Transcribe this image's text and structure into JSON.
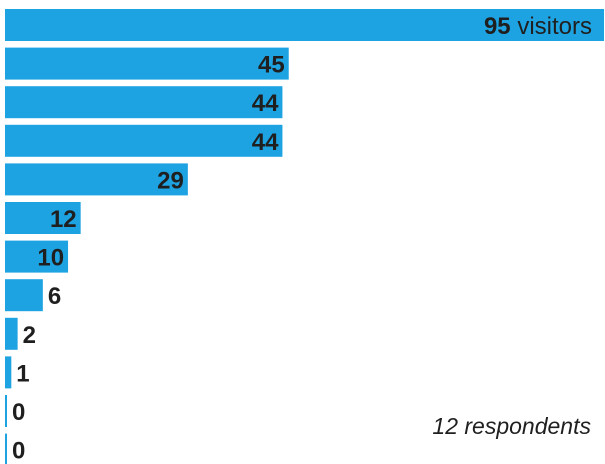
{
  "chart_data": {
    "type": "bar",
    "orientation": "horizontal",
    "values": [
      95,
      45,
      44,
      44,
      29,
      12,
      10,
      6,
      2,
      1,
      0,
      0
    ],
    "value_unit": "visitors",
    "bar_color": "#1ea3e2",
    "label_color": "#1f1f1f",
    "xlim": [
      0,
      95
    ],
    "grid": false,
    "legend": "none"
  },
  "note": "12 respondents"
}
